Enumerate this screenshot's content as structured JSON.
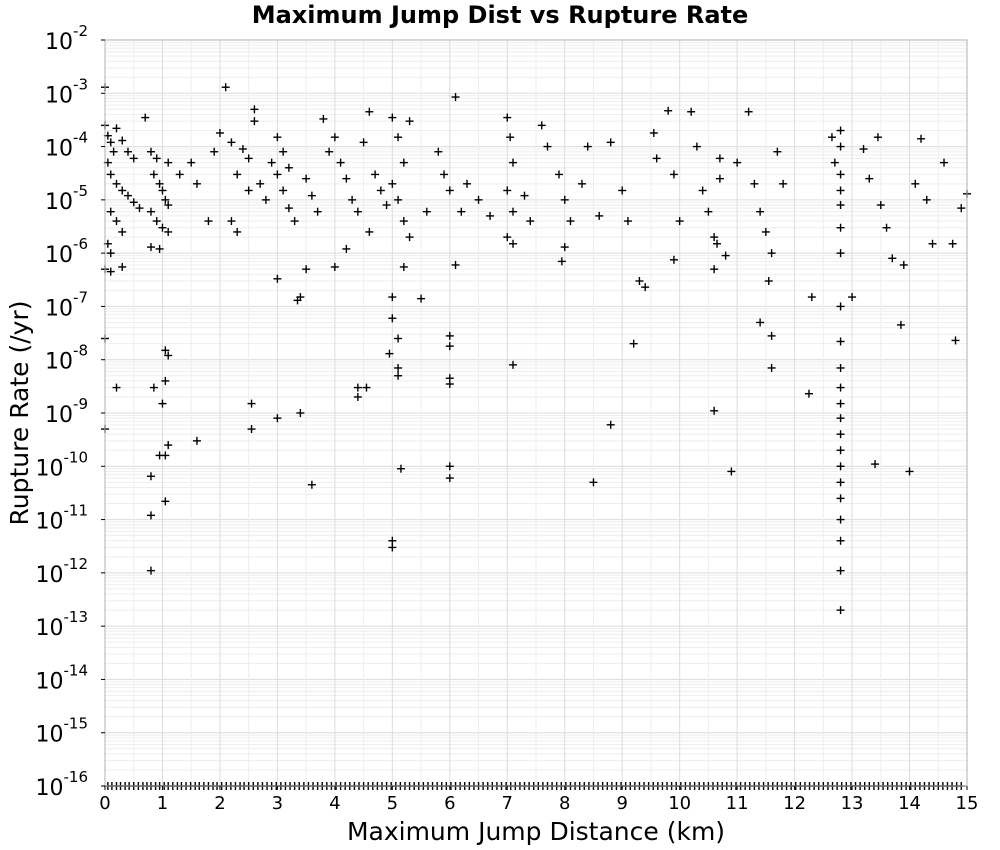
{
  "chart_data": {
    "type": "scatter",
    "title": "Maximum Jump Dist vs Rupture Rate",
    "xlabel": "Maximum Jump Distance (km)",
    "ylabel": "Rupture Rate (/yr)",
    "xlim": [
      0,
      15
    ],
    "ylim": [
      1e-16,
      0.01
    ],
    "y_scale": "log",
    "grid": true,
    "x_ticks": [
      "0",
      "1",
      "2",
      "3",
      "4",
      "5",
      "6",
      "7",
      "8",
      "9",
      "10",
      "11",
      "12",
      "13",
      "14",
      "15"
    ],
    "y_ticks": [
      {
        "base": "10",
        "exp": "-2"
      },
      {
        "base": "10",
        "exp": "-3"
      },
      {
        "base": "10",
        "exp": "-4"
      },
      {
        "base": "10",
        "exp": "-5"
      },
      {
        "base": "10",
        "exp": "-6"
      },
      {
        "base": "10",
        "exp": "-7"
      },
      {
        "base": "10",
        "exp": "-8"
      },
      {
        "base": "10",
        "exp": "-9"
      },
      {
        "base": "10",
        "exp": "-10"
      },
      {
        "base": "10",
        "exp": "-11"
      },
      {
        "base": "10",
        "exp": "-12"
      },
      {
        "base": "10",
        "exp": "-13"
      },
      {
        "base": "10",
        "exp": "-14"
      },
      {
        "base": "10",
        "exp": "-15"
      },
      {
        "base": "10",
        "exp": "-16"
      }
    ],
    "series": [
      {
        "marker": "+",
        "color": "#000000",
        "points": [
          [
            0.0,
            0.0013
          ],
          [
            0.0,
            0.00025
          ],
          [
            0.05,
            0.00016
          ],
          [
            0.1,
            0.00012
          ],
          [
            0.15,
            8e-05
          ],
          [
            0.2,
            0.00022
          ],
          [
            0.3,
            0.00013
          ],
          [
            0.4,
            8e-05
          ],
          [
            0.5,
            6e-05
          ],
          [
            0.05,
            5e-05
          ],
          [
            0.1,
            3e-05
          ],
          [
            0.2,
            2e-05
          ],
          [
            0.3,
            1.5e-05
          ],
          [
            0.4,
            1.2e-05
          ],
          [
            0.5,
            9e-06
          ],
          [
            0.6,
            7e-06
          ],
          [
            0.1,
            6e-06
          ],
          [
            0.2,
            4e-06
          ],
          [
            0.3,
            2.5e-06
          ],
          [
            0.05,
            1.5e-06
          ],
          [
            0.1,
            1e-06
          ],
          [
            0.0,
            5e-07
          ],
          [
            0.1,
            4.5e-07
          ],
          [
            0.3,
            5.5e-07
          ],
          [
            0.0,
            2.5e-08
          ],
          [
            0.2,
            3e-09
          ],
          [
            0.0,
            5e-10
          ],
          [
            0.7,
            0.00035
          ],
          [
            0.8,
            8e-05
          ],
          [
            0.9,
            6e-05
          ],
          [
            0.85,
            3e-05
          ],
          [
            0.95,
            2e-05
          ],
          [
            1.0,
            1.5e-05
          ],
          [
            1.05,
            1e-05
          ],
          [
            1.1,
            8e-06
          ],
          [
            0.8,
            6e-06
          ],
          [
            0.9,
            4e-06
          ],
          [
            1.0,
            3e-06
          ],
          [
            1.1,
            2.5e-06
          ],
          [
            0.8,
            1.3e-06
          ],
          [
            0.95,
            1.2e-06
          ],
          [
            1.1,
            5e-05
          ],
          [
            1.05,
            1.5e-08
          ],
          [
            1.1,
            1.2e-08
          ],
          [
            1.05,
            4e-09
          ],
          [
            0.85,
            3e-09
          ],
          [
            1.0,
            1.5e-09
          ],
          [
            1.1,
            2.5e-10
          ],
          [
            1.05,
            1.6e-10
          ],
          [
            0.95,
            1.6e-10
          ],
          [
            1.6,
            3e-10
          ],
          [
            0.8,
            6.5e-11
          ],
          [
            1.05,
            2.2e-11
          ],
          [
            0.8,
            1.2e-11
          ],
          [
            0.8,
            1.1e-12
          ],
          [
            1.3,
            3e-05
          ],
          [
            1.5,
            5e-05
          ],
          [
            1.6,
            2e-05
          ],
          [
            1.8,
            4e-06
          ],
          [
            1.9,
            8e-05
          ],
          [
            2.0,
            0.00018
          ],
          [
            2.1,
            0.0013
          ],
          [
            2.2,
            0.00012
          ],
          [
            2.3,
            3e-05
          ],
          [
            2.4,
            9e-05
          ],
          [
            2.5,
            6e-05
          ],
          [
            2.2,
            4e-06
          ],
          [
            2.3,
            2.5e-06
          ],
          [
            2.5,
            1.5e-05
          ],
          [
            2.6,
            0.0005
          ],
          [
            2.6,
            0.0003
          ],
          [
            2.7,
            2e-05
          ],
          [
            2.8,
            1e-05
          ],
          [
            2.9,
            5e-05
          ],
          [
            2.55,
            1.5e-09
          ],
          [
            2.55,
            5e-10
          ],
          [
            3.0,
            0.00015
          ],
          [
            3.1,
            8e-05
          ],
          [
            3.2,
            4e-05
          ],
          [
            3.0,
            3e-05
          ],
          [
            3.1,
            1.5e-05
          ],
          [
            3.2,
            7e-06
          ],
          [
            3.3,
            4e-06
          ],
          [
            3.0,
            3.3e-07
          ],
          [
            3.35,
            1.3e-07
          ],
          [
            3.4,
            1.5e-07
          ],
          [
            3.4,
            1e-09
          ],
          [
            3.0,
            8e-10
          ],
          [
            3.6,
            4.5e-11
          ],
          [
            3.5,
            2.5e-05
          ],
          [
            3.6,
            1.2e-05
          ],
          [
            3.7,
            6e-06
          ],
          [
            3.8,
            0.00033
          ],
          [
            3.9,
            8e-05
          ],
          [
            3.5,
            5e-07
          ],
          [
            4.0,
            0.00015
          ],
          [
            4.1,
            5e-05
          ],
          [
            4.2,
            2.5e-05
          ],
          [
            4.3,
            1e-05
          ],
          [
            4.4,
            6e-06
          ],
          [
            4.5,
            0.00012
          ],
          [
            4.6,
            0.00045
          ],
          [
            4.7,
            3e-05
          ],
          [
            4.8,
            1.5e-05
          ],
          [
            4.9,
            8e-06
          ],
          [
            4.0,
            5.5e-07
          ],
          [
            4.4,
            3e-09
          ],
          [
            4.4,
            2e-09
          ],
          [
            4.55,
            3e-09
          ],
          [
            4.2,
            1.2e-06
          ],
          [
            4.6,
            2.5e-06
          ],
          [
            5.0,
            0.00035
          ],
          [
            5.1,
            0.00015
          ],
          [
            5.2,
            5e-05
          ],
          [
            5.3,
            0.0003
          ],
          [
            5.0,
            2e-05
          ],
          [
            5.1,
            1e-05
          ],
          [
            5.2,
            4e-06
          ],
          [
            5.3,
            2e-06
          ],
          [
            5.0,
            1.5e-07
          ],
          [
            5.0,
            6e-08
          ],
          [
            5.1,
            2.5e-08
          ],
          [
            4.95,
            1.3e-08
          ],
          [
            5.1,
            7e-09
          ],
          [
            5.1,
            5e-09
          ],
          [
            5.15,
            9e-11
          ],
          [
            5.0,
            4e-12
          ],
          [
            5.0,
            3e-12
          ],
          [
            5.2,
            5.5e-07
          ],
          [
            5.5,
            1.4e-07
          ],
          [
            5.6,
            6e-06
          ],
          [
            5.8,
            8e-05
          ],
          [
            5.9,
            3e-05
          ],
          [
            6.0,
            1.5e-05
          ],
          [
            6.1,
            0.00085
          ],
          [
            6.2,
            6e-06
          ],
          [
            6.0,
            2.8e-08
          ],
          [
            6.0,
            1.8e-08
          ],
          [
            6.0,
            4.5e-09
          ],
          [
            6.0,
            3.5e-09
          ],
          [
            6.0,
            1e-10
          ],
          [
            6.0,
            6e-11
          ],
          [
            6.1,
            6e-07
          ],
          [
            6.3,
            2e-05
          ],
          [
            6.5,
            1e-05
          ],
          [
            6.7,
            5e-06
          ],
          [
            7.0,
            0.00035
          ],
          [
            7.05,
            0.00015
          ],
          [
            7.1,
            5e-05
          ],
          [
            7.0,
            1.5e-05
          ],
          [
            7.1,
            6e-06
          ],
          [
            7.0,
            2e-06
          ],
          [
            7.1,
            1.5e-06
          ],
          [
            7.1,
            8e-09
          ],
          [
            7.3,
            1.2e-05
          ],
          [
            7.4,
            4e-06
          ],
          [
            7.6,
            0.00025
          ],
          [
            7.7,
            0.0001
          ],
          [
            7.9,
            3e-05
          ],
          [
            8.0,
            1e-05
          ],
          [
            8.0,
            1.3e-06
          ],
          [
            7.95,
            7e-07
          ],
          [
            8.1,
            4e-06
          ],
          [
            8.3,
            2e-05
          ],
          [
            8.4,
            0.0001
          ],
          [
            8.6,
            5e-06
          ],
          [
            8.8,
            0.00012
          ],
          [
            8.8,
            6e-10
          ],
          [
            8.5,
            5e-11
          ],
          [
            9.0,
            1.5e-05
          ],
          [
            9.1,
            4e-06
          ],
          [
            9.2,
            2e-08
          ],
          [
            9.3,
            3e-07
          ],
          [
            9.4,
            2.3e-07
          ],
          [
            9.55,
            0.00018
          ],
          [
            9.6,
            6e-05
          ],
          [
            9.8,
            0.00047
          ],
          [
            9.9,
            3e-05
          ],
          [
            9.9,
            7.5e-07
          ],
          [
            10.0,
            4e-06
          ],
          [
            10.2,
            0.00045
          ],
          [
            10.3,
            0.0001
          ],
          [
            10.4,
            1.5e-05
          ],
          [
            10.5,
            6e-06
          ],
          [
            10.6,
            2e-06
          ],
          [
            10.7,
            6e-05
          ],
          [
            10.7,
            2.5e-05
          ],
          [
            10.6,
            5e-07
          ],
          [
            10.65,
            1.5e-06
          ],
          [
            10.6,
            1.1e-09
          ],
          [
            10.9,
            8e-11
          ],
          [
            10.8,
            9e-07
          ],
          [
            11.0,
            5e-05
          ],
          [
            11.2,
            0.00045
          ],
          [
            11.3,
            2e-05
          ],
          [
            11.4,
            6e-06
          ],
          [
            11.5,
            2.5e-06
          ],
          [
            11.6,
            1e-06
          ],
          [
            11.55,
            3e-07
          ],
          [
            11.4,
            5e-08
          ],
          [
            11.6,
            2.8e-08
          ],
          [
            11.6,
            7e-09
          ],
          [
            11.7,
            8e-05
          ],
          [
            11.8,
            2e-05
          ],
          [
            12.3,
            1.5e-07
          ],
          [
            12.25,
            2.3e-09
          ],
          [
            12.65,
            0.00015
          ],
          [
            12.7,
            5e-05
          ],
          [
            12.8,
            0.0002
          ],
          [
            12.8,
            0.0001
          ],
          [
            12.8,
            3e-05
          ],
          [
            12.8,
            1.5e-05
          ],
          [
            12.8,
            8e-06
          ],
          [
            12.8,
            3e-06
          ],
          [
            12.8,
            1e-06
          ],
          [
            12.8,
            1e-07
          ],
          [
            12.8,
            2.2e-08
          ],
          [
            12.8,
            7e-09
          ],
          [
            12.8,
            3e-09
          ],
          [
            12.8,
            1.5e-09
          ],
          [
            12.8,
            8e-10
          ],
          [
            12.8,
            4e-10
          ],
          [
            12.8,
            2e-10
          ],
          [
            12.8,
            1e-10
          ],
          [
            12.8,
            5e-11
          ],
          [
            12.8,
            2.5e-11
          ],
          [
            12.8,
            1e-11
          ],
          [
            12.8,
            4e-12
          ],
          [
            12.8,
            1.1e-12
          ],
          [
            12.8,
            2e-13
          ],
          [
            13.0,
            1.5e-07
          ],
          [
            13.2,
            9e-05
          ],
          [
            13.3,
            2.5e-05
          ],
          [
            13.45,
            0.00015
          ],
          [
            13.5,
            8e-06
          ],
          [
            13.6,
            3e-06
          ],
          [
            13.7,
            8e-07
          ],
          [
            13.4,
            1.1e-10
          ],
          [
            13.85,
            4.5e-08
          ],
          [
            13.9,
            6e-07
          ],
          [
            14.0,
            8e-11
          ],
          [
            14.1,
            2e-05
          ],
          [
            14.2,
            0.00014
          ],
          [
            14.3,
            1e-05
          ],
          [
            14.4,
            1.5e-06
          ],
          [
            14.6,
            5e-05
          ],
          [
            14.75,
            1.5e-06
          ],
          [
            14.8,
            2.3e-08
          ],
          [
            14.9,
            7e-06
          ],
          [
            15.0,
            1.3e-05
          ]
        ]
      }
    ],
    "baseline_value": 1e-16,
    "baseline_x": [
      0.05,
      0.12,
      0.2,
      0.27,
      0.35,
      0.42,
      0.5,
      0.58,
      0.66,
      0.73,
      0.8,
      0.88,
      0.95,
      1.03,
      1.1,
      1.18,
      1.26,
      1.33,
      1.41,
      1.49,
      1.57,
      1.64,
      1.72,
      1.8,
      1.88,
      1.95,
      2.03,
      2.11,
      2.19,
      2.27,
      2.35,
      2.42,
      2.5,
      2.58,
      2.66,
      2.74,
      2.82,
      2.9,
      2.98,
      3.06,
      3.14,
      3.22,
      3.3,
      3.38,
      3.46,
      3.54,
      3.62,
      3.7,
      3.78,
      3.86,
      3.94,
      4.02,
      4.1,
      4.18,
      4.26,
      4.34,
      4.42,
      4.5,
      4.58,
      4.66,
      4.74,
      4.82,
      4.9,
      4.98,
      5.06,
      5.14,
      5.22,
      5.3,
      5.38,
      5.46,
      5.54,
      5.62,
      5.7,
      5.78,
      5.86,
      5.94,
      6.02,
      6.1,
      6.18,
      6.26,
      6.34,
      6.42,
      6.5,
      6.58,
      6.66,
      6.74,
      6.82,
      6.9,
      6.98,
      7.06,
      7.14,
      7.22,
      7.3,
      7.38,
      7.46,
      7.54,
      7.62,
      7.7,
      7.78,
      7.86,
      7.94,
      8.02,
      8.1,
      8.18,
      8.26,
      8.34,
      8.42,
      8.5,
      8.58,
      8.66,
      8.74,
      8.82,
      8.9,
      8.98,
      9.06,
      9.14,
      9.22,
      9.3,
      9.38,
      9.46,
      9.54,
      9.62,
      9.7,
      9.78,
      9.86,
      9.94,
      10.02,
      10.1,
      10.18,
      10.26,
      10.34,
      10.42,
      10.5,
      10.58,
      10.66,
      10.74,
      10.82,
      10.9,
      10.98,
      11.06,
      11.14,
      11.22,
      11.3,
      11.38,
      11.46,
      11.54,
      11.62,
      11.7,
      11.78,
      11.86,
      11.94,
      12.02,
      12.1,
      12.18,
      12.26,
      12.34,
      12.42,
      12.5,
      12.58,
      12.66,
      12.74,
      12.82,
      12.9,
      12.98,
      13.06,
      13.14,
      13.22,
      13.3,
      13.38,
      13.46,
      13.54,
      13.62,
      13.7,
      13.78,
      13.86,
      13.94,
      14.02,
      14.1,
      14.18,
      14.26,
      14.34,
      14.42,
      14.5,
      14.58,
      14.66,
      14.74,
      14.82,
      14.9
    ]
  }
}
